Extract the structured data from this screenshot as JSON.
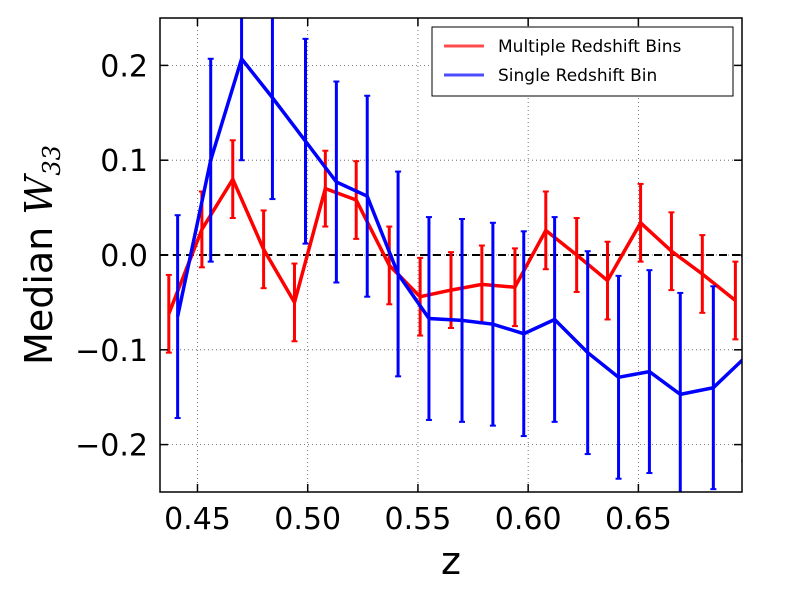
{
  "chart_data": {
    "type": "line",
    "xlabel": "z",
    "ylabel": "Median ",
    "ylabel_math": "W",
    "ylabel_sub": "33",
    "xlim": [
      0.433,
      0.697
    ],
    "ylim": [
      -0.25,
      0.25
    ],
    "xticks": [
      0.45,
      0.5,
      0.55,
      0.6,
      0.65
    ],
    "xtick_labels": [
      "0.45",
      "0.50",
      "0.55",
      "0.60",
      "0.65"
    ],
    "yticks": [
      -0.2,
      -0.1,
      0.0,
      0.1,
      0.2
    ],
    "ytick_labels": [
      "−0.2",
      "−0.1",
      "0.0",
      "0.1",
      "0.2"
    ],
    "grid": true,
    "grid_style": "dotted",
    "zero_line": 0.0,
    "legend_position": "top-right",
    "series": [
      {
        "name": "Multiple Redshift Bins",
        "color": "#ff0000",
        "x": [
          0.437,
          0.452,
          0.466,
          0.48,
          0.494,
          0.508,
          0.522,
          0.537,
          0.551,
          0.565,
          0.579,
          0.594,
          0.608,
          0.622,
          0.636,
          0.651,
          0.665,
          0.679,
          0.694
        ],
        "y": [
          -0.062,
          0.027,
          0.08,
          0.006,
          -0.05,
          0.07,
          0.058,
          -0.011,
          -0.044,
          -0.037,
          -0.031,
          -0.034,
          0.026,
          0.0,
          -0.027,
          0.034,
          0.004,
          -0.02,
          -0.048
        ],
        "yerr": [
          0.041,
          0.04,
          0.041,
          0.041,
          0.041,
          0.04,
          0.041,
          0.041,
          0.041,
          0.04,
          0.041,
          0.041,
          0.041,
          0.039,
          0.041,
          0.041,
          0.041,
          0.041,
          0.041
        ]
      },
      {
        "name": "Single Redshift Bin",
        "color": "#0000ff",
        "x": [
          0.441,
          0.456,
          0.47,
          0.484,
          0.499,
          0.513,
          0.527,
          0.541,
          0.555,
          0.57,
          0.584,
          0.598,
          0.612,
          0.627,
          0.641,
          0.655,
          0.669,
          0.684,
          0.698
        ],
        "y": [
          -0.065,
          0.1,
          0.207,
          0.166,
          0.12,
          0.077,
          0.062,
          -0.02,
          -0.067,
          -0.069,
          -0.073,
          -0.083,
          -0.068,
          -0.103,
          -0.129,
          -0.123,
          -0.147,
          -0.14,
          -0.109
        ],
        "yerr": [
          0.107,
          0.107,
          0.107,
          0.107,
          0.108,
          0.106,
          0.106,
          0.108,
          0.107,
          0.107,
          0.107,
          0.108,
          0.108,
          0.107,
          0.107,
          0.107,
          0.107,
          0.107,
          0.108
        ]
      }
    ]
  }
}
